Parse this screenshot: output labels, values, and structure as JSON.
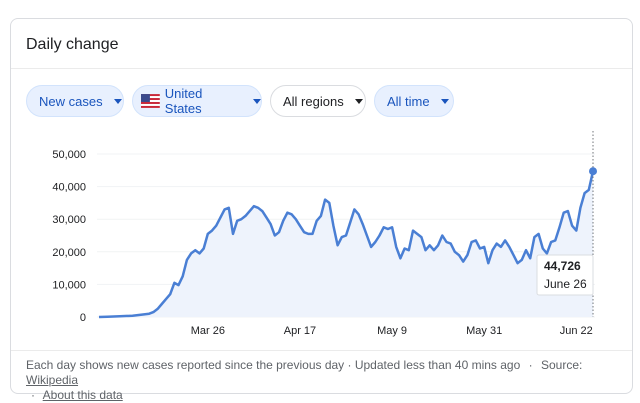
{
  "card": {
    "title": "Daily change"
  },
  "filters": {
    "metric": "New cases",
    "country": "United States",
    "regions": "All regions",
    "period": "All time"
  },
  "footer": {
    "note": "Each day shows new cases reported since the previous day · Updated less than 40 mins ago",
    "source_label": "Source:",
    "source_link": "Wikipedia",
    "about_link": "About this data",
    "separator": "·"
  },
  "tooltip": {
    "value": "44,726",
    "date": "June 26"
  },
  "colors": {
    "line": "#4a7fd4",
    "area": "#eef3fc",
    "chip_bg": "#e8f0fe",
    "chip_text": "#1a55bd"
  },
  "chart_data": {
    "type": "area",
    "xlabel": "",
    "ylabel": "",
    "ylim": [
      0,
      50000
    ],
    "y_ticks": [
      "50,000",
      "40,000",
      "30,000",
      "20,000",
      "10,000",
      "0"
    ],
    "y_tick_values": [
      50000,
      40000,
      30000,
      20000,
      10000,
      0
    ],
    "x_ticks": [
      "Mar 26",
      "Apr 17",
      "May 9",
      "May 31",
      "Jun 22"
    ],
    "x_tick_dates": [
      "2020-03-26",
      "2020-04-17",
      "2020-05-09",
      "2020-05-31",
      "2020-06-22"
    ],
    "grid": true,
    "series": [
      {
        "values": [
          [
            "2020-02-29",
            0
          ],
          [
            "2020-03-02",
            100
          ],
          [
            "2020-03-05",
            200
          ],
          [
            "2020-03-08",
            400
          ],
          [
            "2020-03-10",
            700
          ],
          [
            "2020-03-12",
            1000
          ],
          [
            "2020-03-13",
            1500
          ],
          [
            "2020-03-14",
            2500
          ],
          [
            "2020-03-15",
            4000
          ],
          [
            "2020-03-16",
            5500
          ],
          [
            "2020-03-17",
            7000
          ],
          [
            "2020-03-18",
            10500
          ],
          [
            "2020-03-19",
            9800
          ],
          [
            "2020-03-20",
            12500
          ],
          [
            "2020-03-21",
            17500
          ],
          [
            "2020-03-22",
            19500
          ],
          [
            "2020-03-23",
            20500
          ],
          [
            "2020-03-24",
            19500
          ],
          [
            "2020-03-25",
            21000
          ],
          [
            "2020-03-26",
            25500
          ],
          [
            "2020-03-27",
            26500
          ],
          [
            "2020-03-28",
            28000
          ],
          [
            "2020-03-29",
            30500
          ],
          [
            "2020-03-30",
            33000
          ],
          [
            "2020-03-31",
            33500
          ],
          [
            "2020-04-01",
            25500
          ],
          [
            "2020-04-02",
            29500
          ],
          [
            "2020-04-03",
            30000
          ],
          [
            "2020-04-04",
            31000
          ],
          [
            "2020-04-05",
            32500
          ],
          [
            "2020-04-06",
            34000
          ],
          [
            "2020-04-07",
            33500
          ],
          [
            "2020-04-08",
            32500
          ],
          [
            "2020-04-09",
            30500
          ],
          [
            "2020-04-10",
            28500
          ],
          [
            "2020-04-11",
            25000
          ],
          [
            "2020-04-12",
            26000
          ],
          [
            "2020-04-13",
            29500
          ],
          [
            "2020-04-14",
            32000
          ],
          [
            "2020-04-15",
            31500
          ],
          [
            "2020-04-16",
            30000
          ],
          [
            "2020-04-17",
            28000
          ],
          [
            "2020-04-18",
            26000
          ],
          [
            "2020-04-19",
            25500
          ],
          [
            "2020-04-20",
            25500
          ],
          [
            "2020-04-21",
            29500
          ],
          [
            "2020-04-22",
            31000
          ],
          [
            "2020-04-23",
            36000
          ],
          [
            "2020-04-24",
            35000
          ],
          [
            "2020-04-25",
            28000
          ],
          [
            "2020-04-26",
            22000
          ],
          [
            "2020-04-27",
            24500
          ],
          [
            "2020-04-28",
            25000
          ],
          [
            "2020-04-29",
            29000
          ],
          [
            "2020-04-30",
            33000
          ],
          [
            "2020-05-01",
            31500
          ],
          [
            "2020-05-02",
            28500
          ],
          [
            "2020-05-03",
            25000
          ],
          [
            "2020-05-04",
            21500
          ],
          [
            "2020-05-05",
            23000
          ],
          [
            "2020-05-06",
            25000
          ],
          [
            "2020-05-07",
            27500
          ],
          [
            "2020-05-08",
            27000
          ],
          [
            "2020-05-09",
            27500
          ],
          [
            "2020-05-10",
            21500
          ],
          [
            "2020-05-11",
            18000
          ],
          [
            "2020-05-12",
            21000
          ],
          [
            "2020-05-13",
            20500
          ],
          [
            "2020-05-14",
            26500
          ],
          [
            "2020-05-15",
            25500
          ],
          [
            "2020-05-16",
            24500
          ],
          [
            "2020-05-17",
            20500
          ],
          [
            "2020-05-18",
            22000
          ],
          [
            "2020-05-19",
            20500
          ],
          [
            "2020-05-20",
            22000
          ],
          [
            "2020-05-21",
            25000
          ],
          [
            "2020-05-22",
            23000
          ],
          [
            "2020-05-23",
            22500
          ],
          [
            "2020-05-24",
            20000
          ],
          [
            "2020-05-25",
            19000
          ],
          [
            "2020-05-26",
            17000
          ],
          [
            "2020-05-27",
            19000
          ],
          [
            "2020-05-28",
            23000
          ],
          [
            "2020-05-29",
            23500
          ],
          [
            "2020-05-30",
            21000
          ],
          [
            "2020-05-31",
            21500
          ],
          [
            "2020-06-01",
            16500
          ],
          [
            "2020-06-02",
            20500
          ],
          [
            "2020-06-03",
            22500
          ],
          [
            "2020-06-04",
            21500
          ],
          [
            "2020-06-05",
            23500
          ],
          [
            "2020-06-06",
            21500
          ],
          [
            "2020-06-07",
            19000
          ],
          [
            "2020-06-08",
            16500
          ],
          [
            "2020-06-09",
            17500
          ],
          [
            "2020-06-10",
            20500
          ],
          [
            "2020-06-11",
            18000
          ],
          [
            "2020-06-12",
            24500
          ],
          [
            "2020-06-13",
            25500
          ],
          [
            "2020-06-14",
            21000
          ],
          [
            "2020-06-15",
            19500
          ],
          [
            "2020-06-16",
            23000
          ],
          [
            "2020-06-17",
            23500
          ],
          [
            "2020-06-18",
            27500
          ],
          [
            "2020-06-19",
            32000
          ],
          [
            "2020-06-20",
            32500
          ],
          [
            "2020-06-21",
            28000
          ],
          [
            "2020-06-22",
            26500
          ],
          [
            "2020-06-23",
            33500
          ],
          [
            "2020-06-24",
            38000
          ],
          [
            "2020-06-25",
            39000
          ],
          [
            "2020-06-26",
            44726
          ]
        ]
      }
    ],
    "highlight": {
      "x": "2020-06-26",
      "y": 44726
    }
  }
}
